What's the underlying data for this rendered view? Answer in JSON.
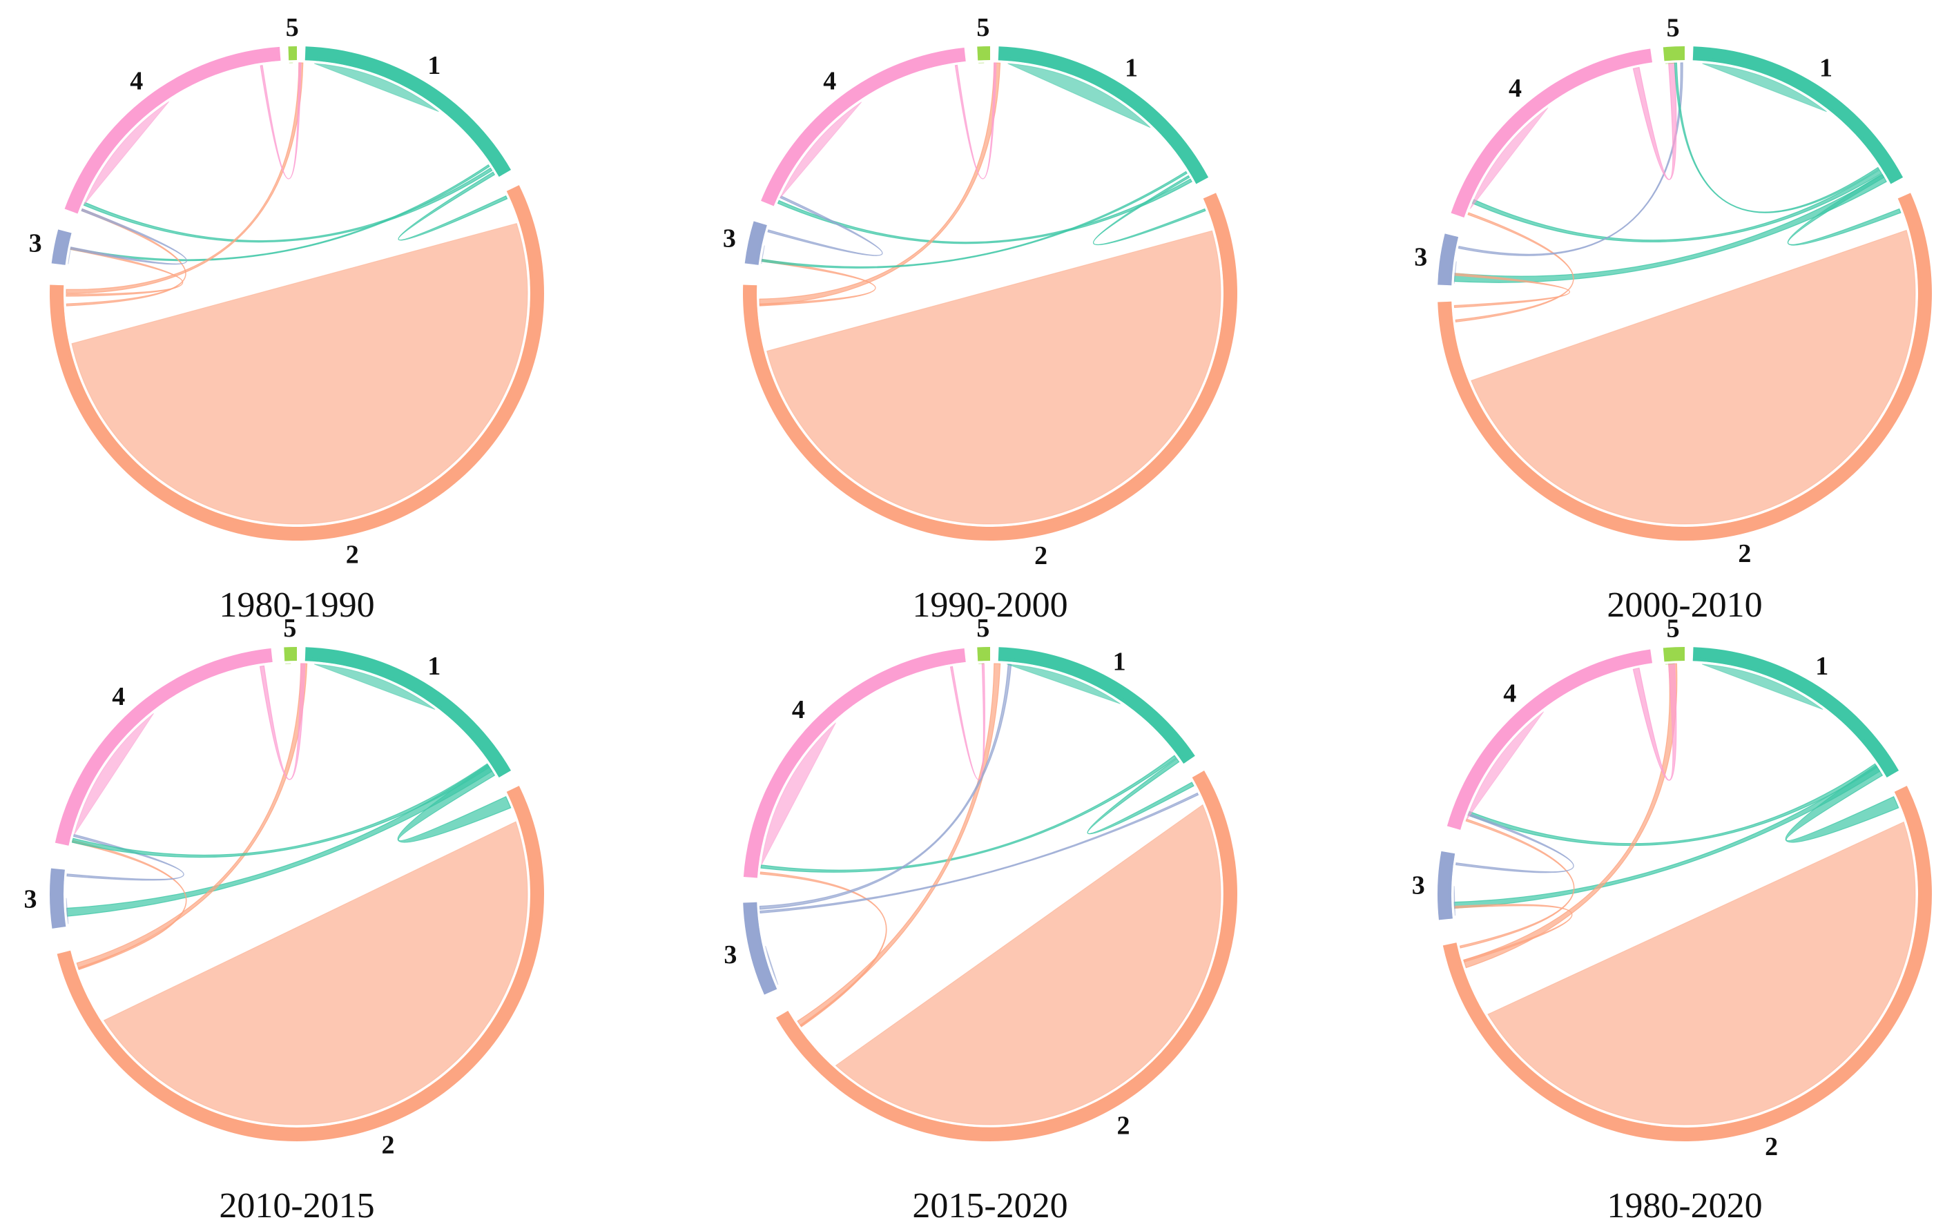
{
  "figure": {
    "description_free": true,
    "segments": [
      {
        "id": "1",
        "label": "1",
        "color": "#3fc7a6"
      },
      {
        "id": "2",
        "label": "2",
        "color": "#fca582"
      },
      {
        "id": "3",
        "label": "3",
        "color": "#96a6d2"
      },
      {
        "id": "4",
        "label": "4",
        "color": "#fc9ed2"
      },
      {
        "id": "5",
        "label": "5",
        "color": "#9ad84c"
      }
    ],
    "panels": [
      {
        "caption": "1980-1990",
        "arcs": {
          "1": [
            2,
            60
          ],
          "2": [
            64,
            272
          ],
          "3": [
            277,
            285
          ],
          "4": [
            290,
            356
          ],
          "5": [
            358,
            360
          ]
        },
        "self": [
          [
            "1",
            0.62
          ],
          [
            "2",
            0.93
          ],
          [
            "3",
            0.45
          ],
          [
            "4",
            0.55
          ],
          [
            "5",
            0.5
          ]
        ],
        "flows": [
          [
            "1",
            "2",
            1.5
          ],
          [
            "1",
            "4",
            1.5
          ],
          [
            "1",
            "3",
            1
          ],
          [
            "2",
            "4",
            1
          ],
          [
            "2",
            "5",
            2
          ],
          [
            "2",
            "3",
            1
          ],
          [
            "3",
            "4",
            1
          ],
          [
            "4",
            "5",
            1
          ]
        ]
      },
      {
        "caption": "1990-2000",
        "arcs": {
          "1": [
            2,
            62
          ],
          "2": [
            66,
            272
          ],
          "3": [
            277,
            287
          ],
          "4": [
            292,
            354
          ],
          "5": [
            357,
            360
          ]
        },
        "self": [
          [
            "1",
            0.7
          ],
          [
            "2",
            0.92
          ],
          [
            "3",
            0.5
          ],
          [
            "4",
            0.55
          ],
          [
            "5",
            0.5
          ]
        ],
        "flows": [
          [
            "1",
            "4",
            1.5
          ],
          [
            "1",
            "2",
            1
          ],
          [
            "2",
            "5",
            3
          ],
          [
            "2",
            "3",
            1
          ],
          [
            "3",
            "4",
            1
          ],
          [
            "4",
            "5",
            1
          ],
          [
            "1",
            "3",
            1
          ]
        ]
      },
      {
        "caption": "2000-2010",
        "arcs": {
          "1": [
            2,
            62
          ],
          "2": [
            66,
            268
          ],
          "3": [
            272,
            284
          ],
          "4": [
            289,
            352
          ],
          "5": [
            355,
            360
          ]
        },
        "self": [
          [
            "1",
            0.6
          ],
          [
            "2",
            0.9
          ],
          [
            "3",
            0.45
          ],
          [
            "4",
            0.55
          ],
          [
            "5",
            0.5
          ]
        ],
        "flows": [
          [
            "1",
            "3",
            4
          ],
          [
            "1",
            "2",
            2
          ],
          [
            "1",
            "4",
            2
          ],
          [
            "2",
            "4",
            1
          ],
          [
            "2",
            "3",
            1
          ],
          [
            "3",
            "5",
            1
          ],
          [
            "4",
            "5",
            3
          ],
          [
            "1",
            "5",
            1
          ]
        ]
      },
      {
        "caption": "2010-2015",
        "arcs": {
          "1": [
            2,
            60
          ],
          "2": [
            64,
            256
          ],
          "3": [
            262,
            276
          ],
          "4": [
            282,
            354
          ],
          "5": [
            357,
            360
          ]
        },
        "self": [
          [
            "1",
            0.6
          ],
          [
            "2",
            0.9
          ],
          [
            "3",
            0.45
          ],
          [
            "4",
            0.55
          ],
          [
            "5",
            0.5
          ]
        ],
        "flows": [
          [
            "1",
            "2",
            9
          ],
          [
            "1",
            "3",
            4
          ],
          [
            "2",
            "5",
            3
          ],
          [
            "2",
            "4",
            1
          ],
          [
            "3",
            "4",
            1
          ],
          [
            "4",
            "5",
            2
          ],
          [
            "1",
            "4",
            2
          ]
        ]
      },
      {
        "caption": "2015-2020",
        "arcs": {
          "1": [
            2,
            56
          ],
          "2": [
            60,
            240
          ],
          "3": [
            246,
            268
          ],
          "4": [
            274,
            354
          ],
          "5": [
            357,
            360
          ]
        },
        "self": [
          [
            "1",
            0.6
          ],
          [
            "2",
            0.9
          ],
          [
            "3",
            0.5
          ],
          [
            "4",
            0.55
          ],
          [
            "5",
            0.5
          ]
        ],
        "flows": [
          [
            "1",
            "2",
            2
          ],
          [
            "1",
            "4",
            1.5
          ],
          [
            "2",
            "5",
            3
          ],
          [
            "2",
            "4",
            1
          ],
          [
            "3",
            "1",
            1.5
          ],
          [
            "3",
            "2",
            1
          ],
          [
            "4",
            "5",
            1
          ]
        ]
      },
      {
        "caption": "1980-2020",
        "arcs": {
          "1": [
            2,
            60
          ],
          "2": [
            64,
            258
          ],
          "3": [
            264,
            280
          ],
          "4": [
            286,
            352
          ],
          "5": [
            355,
            360
          ]
        },
        "self": [
          [
            "1",
            0.6
          ],
          [
            "2",
            0.9
          ],
          [
            "3",
            0.45
          ],
          [
            "4",
            0.55
          ],
          [
            "5",
            0.5
          ]
        ],
        "flows": [
          [
            "1",
            "2",
            9
          ],
          [
            "1",
            "3",
            3
          ],
          [
            "1",
            "4",
            2
          ],
          [
            "2",
            "5",
            4
          ],
          [
            "2",
            "4",
            1
          ],
          [
            "3",
            "4",
            1
          ],
          [
            "4",
            "5",
            3
          ],
          [
            "2",
            "3",
            1
          ]
        ]
      }
    ]
  }
}
